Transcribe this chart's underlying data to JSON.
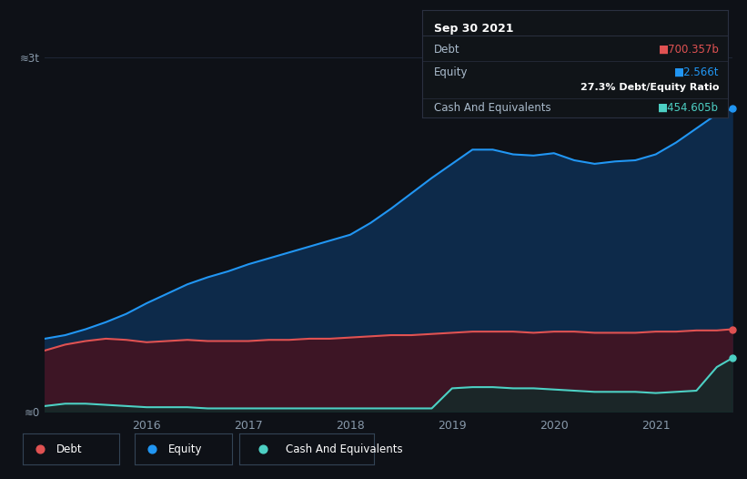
{
  "background_color": "#0e1117",
  "plot_bg_color": "#0e1117",
  "grid_color": "#1e2535",
  "years": [
    2015.0,
    2015.2,
    2015.4,
    2015.6,
    2015.8,
    2016.0,
    2016.2,
    2016.4,
    2016.6,
    2016.8,
    2017.0,
    2017.2,
    2017.4,
    2017.6,
    2017.8,
    2018.0,
    2018.2,
    2018.4,
    2018.6,
    2018.8,
    2019.0,
    2019.2,
    2019.4,
    2019.6,
    2019.8,
    2020.0,
    2020.2,
    2020.4,
    2020.6,
    2020.8,
    2021.0,
    2021.2,
    2021.4,
    2021.6,
    2021.75
  ],
  "equity": [
    0.62,
    0.65,
    0.7,
    0.76,
    0.83,
    0.92,
    1.0,
    1.08,
    1.14,
    1.19,
    1.25,
    1.3,
    1.35,
    1.4,
    1.45,
    1.5,
    1.6,
    1.72,
    1.85,
    1.98,
    2.1,
    2.22,
    2.22,
    2.18,
    2.17,
    2.19,
    2.13,
    2.1,
    2.12,
    2.13,
    2.18,
    2.28,
    2.4,
    2.52,
    2.566
  ],
  "debt": [
    0.52,
    0.57,
    0.6,
    0.62,
    0.61,
    0.59,
    0.6,
    0.61,
    0.6,
    0.6,
    0.6,
    0.61,
    0.61,
    0.62,
    0.62,
    0.63,
    0.64,
    0.65,
    0.65,
    0.66,
    0.67,
    0.68,
    0.68,
    0.68,
    0.67,
    0.68,
    0.68,
    0.67,
    0.67,
    0.67,
    0.68,
    0.68,
    0.69,
    0.69,
    0.7
  ],
  "cash": [
    0.05,
    0.07,
    0.07,
    0.06,
    0.05,
    0.04,
    0.04,
    0.04,
    0.03,
    0.03,
    0.03,
    0.03,
    0.03,
    0.03,
    0.03,
    0.03,
    0.03,
    0.03,
    0.03,
    0.03,
    0.2,
    0.21,
    0.21,
    0.2,
    0.2,
    0.19,
    0.18,
    0.17,
    0.17,
    0.17,
    0.16,
    0.17,
    0.18,
    0.38,
    0.4546
  ],
  "ylim_min": 0,
  "ylim_max": 3.0,
  "xtick_years": [
    2016,
    2017,
    2018,
    2019,
    2020,
    2021
  ],
  "equity_line_color": "#2196f3",
  "debt_line_color": "#e05252",
  "cash_line_color": "#4dd0c4",
  "equity_fill_color": "#0d2a4a",
  "debt_fill_color": "#3d1525",
  "cash_fill_color": "#0d2e2a",
  "tooltip_bg": "#101418",
  "tooltip_border": "#2a3040",
  "tooltip_title": "Sep 30 2021",
  "tooltip_debt_label": "Debt",
  "tooltip_debt_val": "■700.357b",
  "tooltip_equity_label": "Equity",
  "tooltip_equity_val": "■2.566t",
  "tooltip_ratio": "27.3% Debt/Equity Ratio",
  "tooltip_cash_label": "Cash And Equivalents",
  "tooltip_cash_val": "■454.605b",
  "legend_labels": [
    "Debt",
    "Equity",
    "Cash And Equivalents"
  ],
  "legend_colors": [
    "#e05252",
    "#2196f3",
    "#4dd0c4"
  ]
}
